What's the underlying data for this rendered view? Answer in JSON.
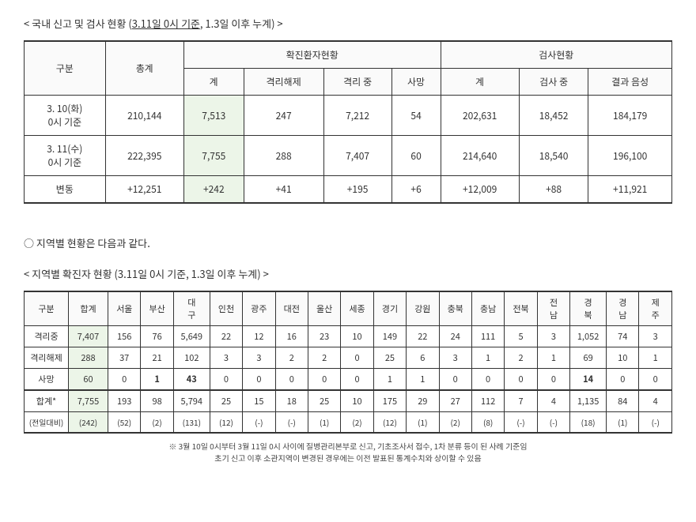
{
  "section1": {
    "title_prefix": "< 국내 신고 및 검사 현황 (",
    "title_underline": "3.11일 0시 기준",
    "title_suffix": ", 1.3일 이후 누계) >",
    "headers": {
      "gubun": "구분",
      "total": "총계",
      "confirmed_group": "확진환자현황",
      "confirmed_sub": "계",
      "released": "격리해제",
      "isolated": "격리 중",
      "death": "사망",
      "test_group": "검사현황",
      "test_sub": "계",
      "testing": "검사 중",
      "negative": "결과 음성"
    },
    "rows": [
      {
        "label_l1": "3. 10(화)",
        "label_l2": "0시 기준",
        "total": "210,144",
        "confirmed": "7,513",
        "released": "247",
        "isolated": "7,212",
        "death": "54",
        "test": "202,631",
        "testing": "18,452",
        "negative": "184,179"
      },
      {
        "label_l1": "3. 11(수)",
        "label_l2": "0시 기준",
        "total": "222,395",
        "confirmed": "7,755",
        "released": "288",
        "isolated": "7,407",
        "death": "60",
        "test": "214,640",
        "testing": "18,540",
        "negative": "196,100"
      },
      {
        "label": "변동",
        "total": "+12,251",
        "confirmed": "+242",
        "released": "+41",
        "isolated": "+195",
        "death": "+6",
        "test": "+12,009",
        "testing": "+88",
        "negative": "+11,921"
      }
    ]
  },
  "note_text": "○ 지역별 현황은 다음과 같다.",
  "section2": {
    "title": "< 지역별 확진자 현황 (3.11일 0시 기준, 1.3일 이후 누계) >",
    "headers": [
      "구분",
      "합계",
      "서울",
      "부산",
      "대구",
      "인천",
      "광주",
      "대전",
      "울산",
      "세종",
      "경기",
      "강원",
      "충북",
      "충남",
      "전북",
      "전남",
      "경북",
      "경남",
      "제주"
    ],
    "multiline": {
      "대구": [
        "대",
        "구"
      ],
      "전남": [
        "전",
        "남"
      ],
      "경북": [
        "경",
        "북"
      ],
      "경남": [
        "경",
        "남"
      ],
      "제주": [
        "제",
        "주"
      ]
    },
    "rows": [
      {
        "label": "격리중",
        "vals": [
          "7,407",
          "156",
          "76",
          "5,649",
          "22",
          "12",
          "16",
          "23",
          "10",
          "149",
          "22",
          "24",
          "111",
          "5",
          "3",
          "1,052",
          "74",
          "3"
        ]
      },
      {
        "label": "격리해제",
        "vals": [
          "288",
          "37",
          "21",
          "102",
          "3",
          "3",
          "2",
          "2",
          "0",
          "25",
          "6",
          "3",
          "1",
          "2",
          "1",
          "69",
          "10",
          "1"
        ]
      },
      {
        "label": "사망",
        "vals": [
          "60",
          "0",
          "1",
          "43",
          "0",
          "0",
          "0",
          "0",
          "0",
          "1",
          "1",
          "0",
          "0",
          "0",
          "0",
          "14",
          "0",
          "0"
        ]
      },
      {
        "label": "합계*",
        "vals": [
          "7,755",
          "193",
          "98",
          "5,794",
          "25",
          "15",
          "18",
          "25",
          "10",
          "175",
          "29",
          "27",
          "112",
          "7",
          "4",
          "1,135",
          "84",
          "4"
        ]
      },
      {
        "label": "(전일대비)",
        "vals": [
          "(242)",
          "(52)",
          "(2)",
          "(131)",
          "(12)",
          "(-)",
          "(-)",
          "(1)",
          "(2)",
          "(12)",
          "(1)",
          "(2)",
          "(8)",
          "(-)",
          "(-)",
          "(18)",
          "(1)",
          "(-)"
        ]
      }
    ],
    "bold_cols": [
      3,
      4
    ],
    "footnote_l1": "※ 3월 10일 0시부터 3월 11일 0시 사이에 질병관리본부로 신고, 기초조사서 접수, 1차 분류 등이 된 사례 기준임",
    "footnote_l2": "초기 신고 이후 소관지역이 변경된 경우에는 이전 발표된 통계수치와 상이할 수 있음"
  }
}
